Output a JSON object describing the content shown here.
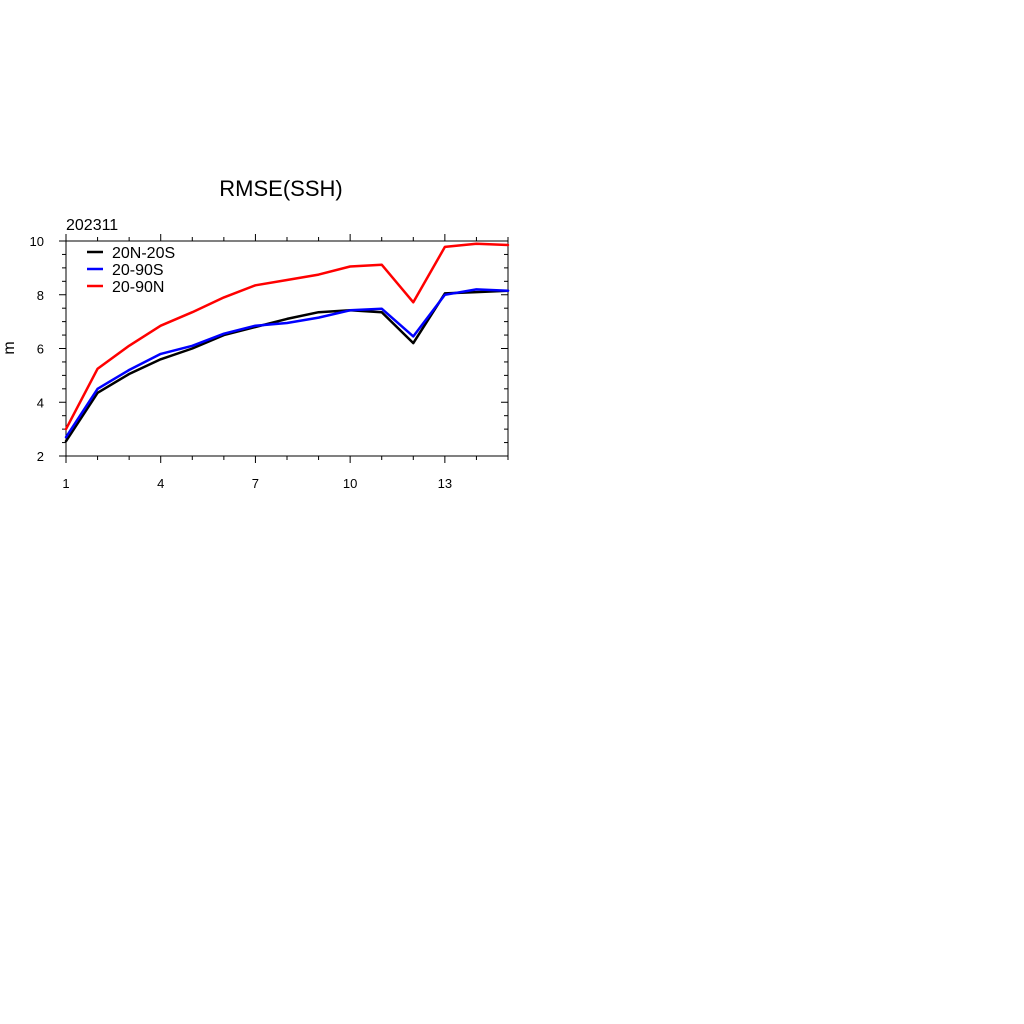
{
  "chart_data": {
    "type": "line",
    "title": "RMSE(SSH)",
    "subtitle": "202311",
    "xlabel": "",
    "ylabel": "m",
    "xlim": [
      1,
      15
    ],
    "ylim": [
      2,
      10
    ],
    "x_ticks": [
      1,
      4,
      7,
      10,
      13
    ],
    "y_ticks": [
      2,
      4,
      6,
      8,
      10
    ],
    "grid": false,
    "legend_position": "top-left",
    "x": [
      1,
      2,
      3,
      4,
      5,
      6,
      7,
      8,
      9,
      10,
      11,
      12,
      13,
      14,
      15
    ],
    "series": [
      {
        "name": "20N-20S",
        "color": "#000000",
        "values": [
          2.55,
          4.35,
          5.05,
          5.6,
          6.0,
          6.5,
          6.8,
          7.1,
          7.35,
          7.42,
          7.35,
          6.2,
          8.05,
          8.1,
          8.15
        ]
      },
      {
        "name": "20-90S",
        "color": "#0000ff",
        "values": [
          2.7,
          4.5,
          5.2,
          5.8,
          6.1,
          6.55,
          6.85,
          6.95,
          7.15,
          7.42,
          7.48,
          6.45,
          8.0,
          8.2,
          8.15
        ]
      },
      {
        "name": "20-90N",
        "color": "#ff0000",
        "values": [
          3.0,
          5.25,
          6.1,
          6.85,
          7.35,
          7.9,
          8.35,
          8.55,
          8.75,
          9.05,
          9.12,
          7.72,
          9.78,
          9.9,
          9.85
        ]
      }
    ]
  }
}
